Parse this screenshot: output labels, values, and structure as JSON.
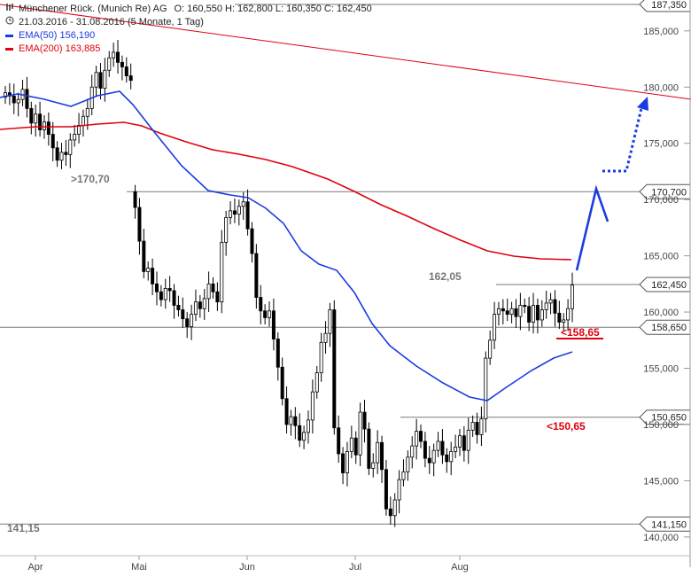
{
  "chart_data": {
    "type": "candlestick",
    "header": {
      "title": "Münchener Rück. (Munich Re) AG",
      "ohlc": "O: 160,550  H: 162,800  L: 160,350  C: 162,450",
      "range": "21.03.2016 - 31.08.2016 (5 Monate, 1 Tag)",
      "ema50_label": "EMA(50)",
      "ema50_value": "156,190",
      "ema200_label": "EMA(200)",
      "ema200_value": "163,885"
    },
    "y_axis": {
      "min": 140,
      "max": 187.35,
      "ticks": [
        "185,000",
        "180,000",
        "175,000",
        "170,000",
        "165,000",
        "160,000",
        "155,000",
        "150,000",
        "145,000",
        "140,000"
      ],
      "tick_values": [
        185,
        180,
        175,
        170,
        165,
        160,
        155,
        150,
        145,
        140
      ]
    },
    "x_axis": {
      "labels": [
        "Apr",
        "Mai",
        "Jun",
        "Jul",
        "Aug"
      ]
    },
    "price_markers": [
      {
        "value": 187.35,
        "label": "187,350"
      },
      {
        "value": 170.7,
        "label": "170,700"
      },
      {
        "value": 162.45,
        "label": "162,450"
      },
      {
        "value": 158.65,
        "label": "158,650"
      },
      {
        "value": 150.65,
        "label": "150,650"
      },
      {
        "value": 141.15,
        "label": "141,150"
      }
    ],
    "annotations": [
      {
        "text": ">170,70",
        "color": "#777777"
      },
      {
        "text": "162,05",
        "color": "#777777"
      },
      {
        "text": "<158,65",
        "color": "#e0000f"
      },
      {
        "text": "<150,65",
        "color": "#e0000f"
      },
      {
        "text": "141,15",
        "color": "#777777"
      }
    ],
    "colors": {
      "ema50": "#1a3be0",
      "ema200": "#e0000f",
      "trendline": "#e0000f",
      "forecast": "#1a3be0",
      "candle": "#000000",
      "axis_text": "#444444"
    }
  }
}
